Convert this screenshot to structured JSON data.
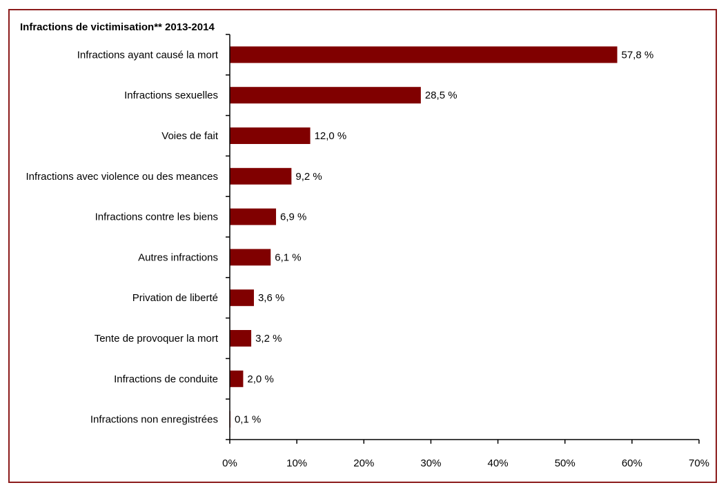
{
  "chart_data": {
    "type": "bar",
    "orientation": "horizontal",
    "title": "Infractions de victimisation**  2013-2014",
    "categories": [
      "Infractions ayant causé la mort",
      "Infractions sexuelles",
      "Voies de fait",
      "Infractions avec violence ou des meances",
      "Infractions contre les biens",
      "Autres infractions",
      "Privation de liberté",
      "Tente de provoquer la mort",
      "Infractions de conduite",
      "Infractions non enregistrées"
    ],
    "values": [
      57.8,
      28.5,
      12.0,
      9.2,
      6.9,
      6.1,
      3.6,
      3.2,
      2.0,
      0.1
    ],
    "value_labels": [
      "57,8 %",
      "28,5 %",
      "12,0 %",
      "9,2 %",
      "6,9 %",
      "6,1 %",
      "3,6 %",
      "3,2 %",
      "2,0 %",
      "0,1 %"
    ],
    "xlim": [
      0,
      70
    ],
    "x_ticks": [
      0,
      10,
      20,
      30,
      40,
      50,
      60,
      70
    ],
    "x_tick_labels": [
      "0%",
      "10%",
      "20%",
      "30%",
      "40%",
      "50%",
      "60%",
      "70%"
    ],
    "xlabel": "",
    "ylabel": "",
    "grid": false,
    "legend": "none",
    "bar_color": "#800000",
    "frame_color": "#8b1a1a"
  }
}
